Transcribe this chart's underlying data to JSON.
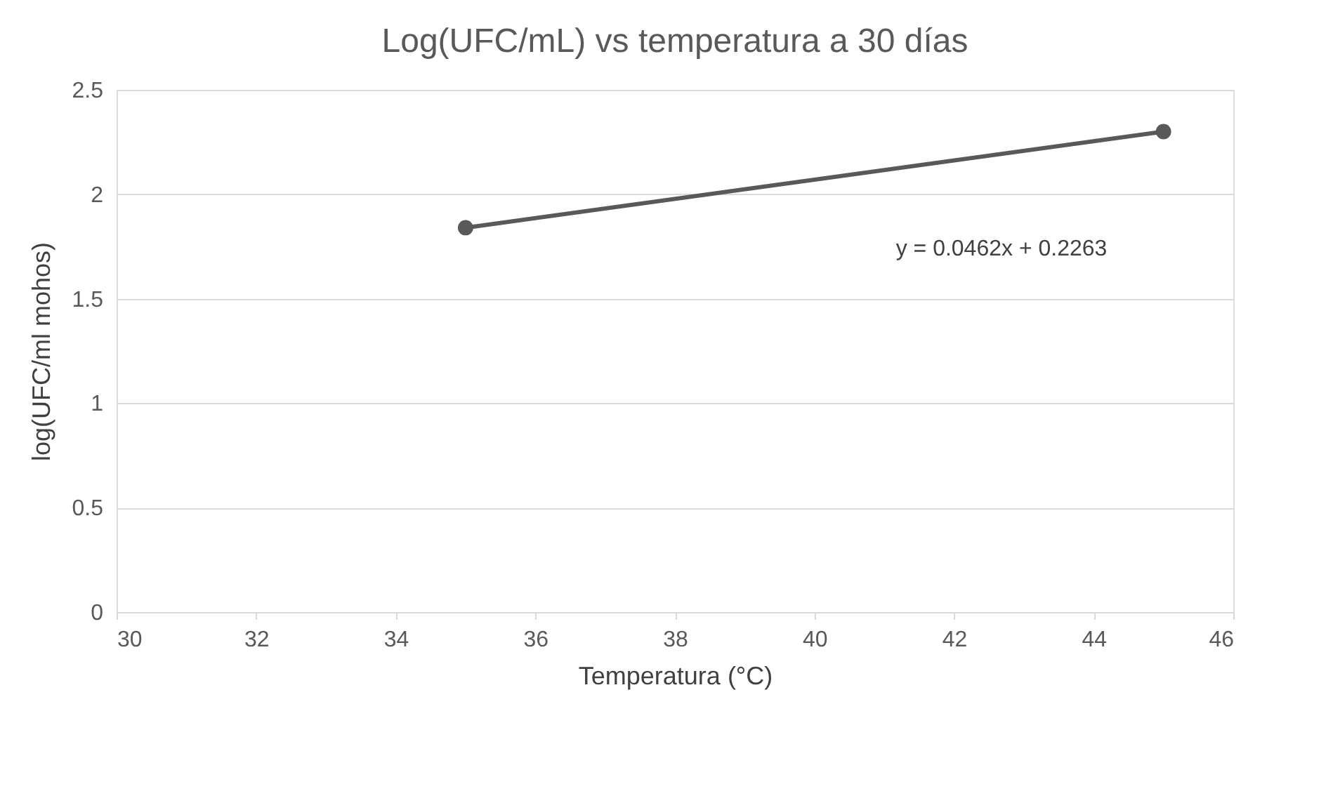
{
  "chart_data": {
    "type": "line",
    "title": "Log(UFC/mL) vs temperatura a 30 días",
    "xlabel": "Temperatura (°C)",
    "ylabel": "log(UFC/ml mohos)",
    "x": [
      35,
      45
    ],
    "series": [
      {
        "color": "#595959",
        "values": [
          1.84,
          2.3
        ]
      }
    ],
    "marker": "circle",
    "line_style": "solid",
    "xlim": [
      30,
      46
    ],
    "xticks": [
      30,
      32,
      34,
      36,
      38,
      40,
      42,
      44,
      46
    ],
    "ylim": [
      0,
      2.5
    ],
    "yticks": [
      0,
      0.5,
      1,
      1.5,
      2,
      2.5
    ],
    "grid": "y",
    "annotations": [
      "y = 0.0462x + 0.2263"
    ]
  }
}
